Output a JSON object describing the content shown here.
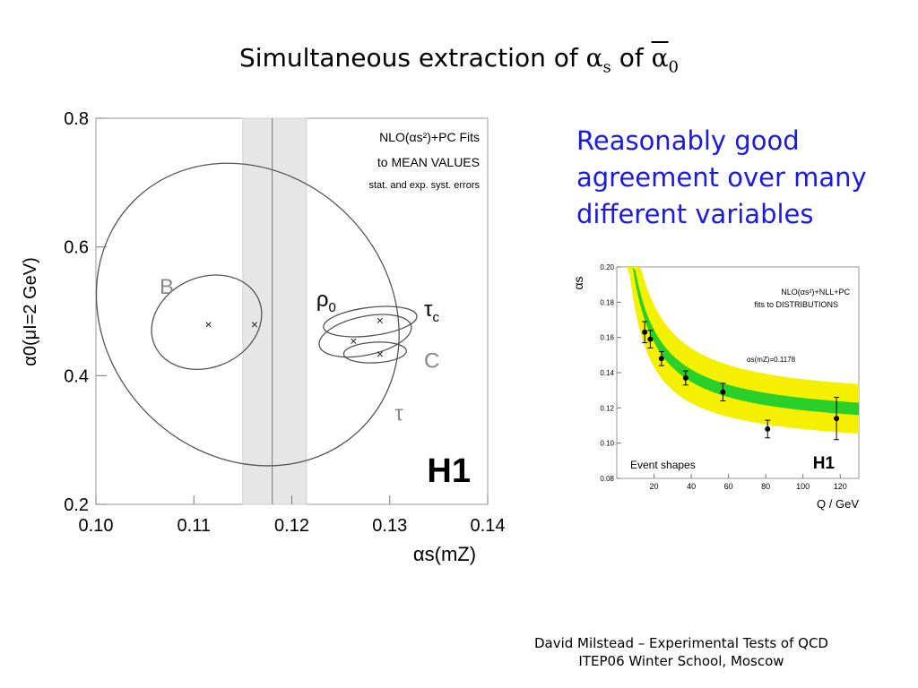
{
  "slide": {
    "title_prefix": "Simultaneous extraction of ",
    "title_alpha": "α",
    "title_alpha_sub": "s",
    "title_mid": " of ",
    "title_alpha0": "α",
    "title_alpha0_sub": "0",
    "remark": "Reasonably good agreement over many different variables",
    "footer_line1": "David Milstead – Experimental Tests of QCD",
    "footer_line2": "ITEP06 Winter School, Moscow"
  },
  "left_plot": {
    "legend_line1": "NLO(αs²)+PC Fits",
    "legend_line2": "to MEAN VALUES",
    "legend_line3": "stat. and exp. syst. errors",
    "logo": "H1",
    "ylabel": "α0(μI=2 GeV)",
    "xlabel": "αs(mZ)",
    "x_ticks": [
      "0.10",
      "0.11",
      "0.12",
      "0.13",
      "0.14"
    ],
    "y_ticks": [
      "0.2",
      "0.4",
      "0.6",
      "0.8"
    ],
    "xlim": [
      0.1,
      0.14
    ],
    "ylim": [
      0.2,
      0.8
    ],
    "band": [
      0.115,
      0.1215
    ],
    "world_average": 0.118,
    "ellipses": [
      {
        "label": "τ",
        "cx": 0.1155,
        "cy": 0.495,
        "rx": 0.0144,
        "ry": 0.25,
        "angle": -45
      },
      {
        "label": "B",
        "cx": 0.1113,
        "cy": 0.483,
        "rx": 0.0058,
        "ry": 0.07,
        "angle": -24
      },
      {
        "label": "ρ0",
        "cx": 0.128,
        "cy": 0.484,
        "rx": 0.0048,
        "ry": 0.022,
        "angle": -7
      },
      {
        "label": "τc",
        "cx": 0.1275,
        "cy": 0.462,
        "rx": 0.0048,
        "ry": 0.03,
        "angle": -12
      },
      {
        "label": "C",
        "cx": 0.1285,
        "cy": 0.436,
        "rx": 0.0032,
        "ry": 0.016,
        "angle": -3
      }
    ],
    "markers": [
      {
        "x": 0.1115,
        "y": 0.48
      },
      {
        "x": 0.1162,
        "y": 0.48
      },
      {
        "x": 0.1263,
        "y": 0.454
      },
      {
        "x": 0.129,
        "y": 0.486
      },
      {
        "x": 0.129,
        "y": 0.434
      }
    ],
    "labels": [
      {
        "text": "B",
        "x": 0.1065,
        "y": 0.527,
        "color": "#888888"
      },
      {
        "text": "ρ",
        "sub": "0",
        "x": 0.1225,
        "y": 0.508,
        "color": "#000000"
      },
      {
        "text": "τ",
        "sub": "c",
        "x": 0.1335,
        "y": 0.492,
        "color": "#000000"
      },
      {
        "text": "C",
        "x": 0.1335,
        "y": 0.412,
        "color": "#888888"
      },
      {
        "text": "τ",
        "x": 0.1305,
        "y": 0.33,
        "color": "#888888"
      }
    ]
  },
  "right_plot": {
    "type": "scatter",
    "ylabel": "αs",
    "xlabel": "Q / GeV",
    "legend_line1": "NLO(αs²)+NLL+PC",
    "legend_line2": "fits to DISTRIBUTIONS",
    "fit_label": "αs(mZ)=0.1178",
    "annotation": "Event shapes",
    "logo": "H1",
    "x_ticks": [
      "20",
      "40",
      "60",
      "80",
      "100",
      "120"
    ],
    "y_ticks": [
      "0.08",
      "0.10",
      "0.12",
      "0.14",
      "0.16",
      "0.18",
      "0.20"
    ],
    "xlim": [
      0,
      130
    ],
    "ylim": [
      0.08,
      0.2
    ],
    "points": [
      {
        "x": 15,
        "y": 0.163,
        "err": 0.006
      },
      {
        "x": 18,
        "y": 0.159,
        "err": 0.005
      },
      {
        "x": 24,
        "y": 0.148,
        "err": 0.004
      },
      {
        "x": 37,
        "y": 0.137,
        "err": 0.004
      },
      {
        "x": 57,
        "y": 0.129,
        "err": 0.005
      },
      {
        "x": 81,
        "y": 0.108,
        "err": 0.005
      },
      {
        "x": 118,
        "y": 0.114,
        "err": 0.012
      }
    ],
    "curve_colors": {
      "band": "#f5f000",
      "inner": "#2ad02a"
    }
  }
}
